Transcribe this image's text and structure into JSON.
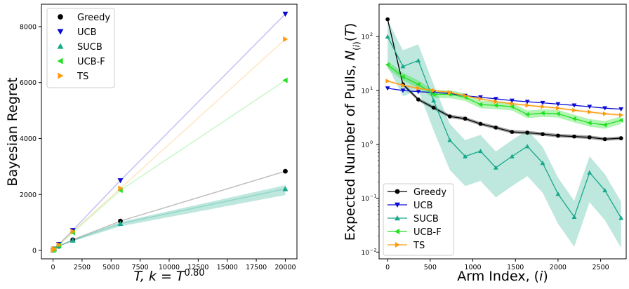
{
  "colors": {
    "Greedy": "#000000",
    "UCB": "#0a0ad6",
    "SUCB": "#16a88a",
    "UCB-F": "#22e022",
    "TS": "#ff9a10"
  },
  "chart_data": [
    {
      "type": "scatter",
      "ylabel": "Bayesian Regret",
      "xlabel": "T, k = T^0.80",
      "xlim": [
        -1000,
        21000
      ],
      "ylim": [
        -300,
        8800
      ],
      "xticks": [
        0,
        2500,
        5000,
        7500,
        10000,
        12500,
        15000,
        17500,
        20000
      ],
      "yticks": [
        0,
        2000,
        4000,
        6000,
        8000
      ],
      "legend": "top-left",
      "series": [
        {
          "name": "Greedy",
          "marker": "circle",
          "x": [
            10,
            100,
            500,
            1700,
            5800,
            20000
          ],
          "y": [
            10,
            45,
            150,
            380,
            1050,
            2830
          ]
        },
        {
          "name": "UCB",
          "marker": "triangle-down",
          "x": [
            10,
            100,
            500,
            1700,
            5800,
            20000
          ],
          "y": [
            10,
            60,
            220,
            720,
            2500,
            8450
          ]
        },
        {
          "name": "SUCB",
          "marker": "triangle-up",
          "x": [
            10,
            100,
            500,
            1700,
            5800,
            20000
          ],
          "y": [
            10,
            50,
            160,
            360,
            960,
            2200
          ]
        },
        {
          "name": "UCB-F",
          "marker": "triangle-left",
          "x": [
            10,
            100,
            500,
            1700,
            5800,
            20000
          ],
          "y": [
            10,
            55,
            190,
            640,
            2150,
            6080
          ]
        },
        {
          "name": "TS",
          "marker": "triangle-right",
          "x": [
            10,
            100,
            500,
            1700,
            5800,
            20000
          ],
          "y": [
            10,
            55,
            200,
            680,
            2220,
            7550
          ]
        }
      ]
    },
    {
      "type": "line",
      "ylabel": "Expected Number of Pulls, N_(i)(T)",
      "xlabel": "Arm Index, (i)",
      "yscale": "log",
      "xlim": [
        -100,
        2800
      ],
      "ylim": [
        0.0075,
        400
      ],
      "xticks": [
        0,
        500,
        1000,
        1500,
        2000,
        2500
      ],
      "yticks": [
        0.01,
        0.1,
        1,
        10,
        100
      ],
      "legend": "bottom-left",
      "x": [
        0,
        180,
        360,
        540,
        730,
        910,
        1090,
        1270,
        1460,
        1640,
        1820,
        2000,
        2190,
        2370,
        2550,
        2740
      ],
      "series": [
        {
          "name": "Greedy",
          "marker": "circle",
          "values": [
            210,
            13,
            6.8,
            4.8,
            3.3,
            3.0,
            2.4,
            2.05,
            1.7,
            1.65,
            1.55,
            1.45,
            1.4,
            1.35,
            1.25,
            1.3
          ]
        },
        {
          "name": "UCB",
          "marker": "triangle-down",
          "values": [
            11,
            10,
            9.5,
            9.2,
            8.8,
            8.0,
            7.5,
            7.0,
            6.5,
            6.2,
            5.9,
            5.6,
            5.3,
            5.0,
            4.7,
            4.5
          ]
        },
        {
          "name": "SUCB",
          "marker": "triangle-up",
          "values": [
            100,
            28,
            36,
            6.5,
            1.2,
            0.6,
            0.75,
            0.37,
            0.6,
            0.92,
            0.45,
            0.12,
            0.045,
            0.3,
            0.14,
            0.043
          ]
        },
        {
          "name": "UCB-F",
          "marker": "triangle-left",
          "values": [
            30,
            18,
            13,
            8.5,
            8.5,
            7.5,
            5.5,
            5.3,
            5.0,
            3.6,
            3.8,
            3.7,
            3.0,
            2.5,
            2.3,
            2.8
          ]
        },
        {
          "name": "TS",
          "marker": "triangle-right",
          "values": [
            15,
            12.5,
            11,
            10,
            9.2,
            8.0,
            7.0,
            6.2,
            5.7,
            5.3,
            5.0,
            4.7,
            4.3,
            4.0,
            3.7,
            3.5
          ]
        }
      ]
    }
  ]
}
